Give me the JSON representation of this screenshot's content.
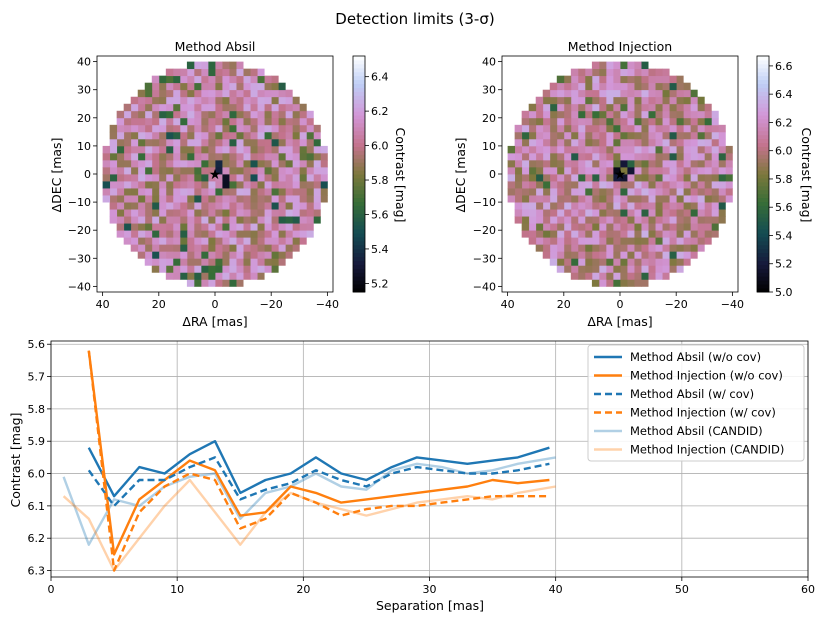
{
  "suptitle": "Detection limits (3-σ)",
  "chart_data": [
    {
      "type": "heatmap",
      "title": "Method Absil",
      "xlabel": "ΔRA [mas]",
      "ylabel": "ΔDEC [mas]",
      "xlim": [
        42,
        -42
      ],
      "ylim": [
        -42,
        42
      ],
      "xticks": [
        "40",
        "20",
        "0",
        "−20",
        "−40"
      ],
      "yticks": [
        "40",
        "30",
        "20",
        "10",
        "0",
        "−10",
        "−20",
        "−30",
        "−40"
      ],
      "colorbar": {
        "label": "Contrast [mag]",
        "min": 5.15,
        "max": 6.52,
        "ticks": [
          "5.2",
          "5.4",
          "5.6",
          "5.8",
          "6.0",
          "6.2",
          "6.4"
        ]
      },
      "grid": {
        "radius_mas": 40,
        "pixel_mas": 2.5,
        "typical": 6.05,
        "spread": 0.2,
        "darkest": 5.2
      },
      "marker": "star at origin"
    },
    {
      "type": "heatmap",
      "title": "Method Injection",
      "xlabel": "ΔRA [mas]",
      "ylabel": "ΔDEC [mas]",
      "xlim": [
        42,
        -42
      ],
      "ylim": [
        -42,
        42
      ],
      "xticks": [
        "40",
        "20",
        "0",
        "−20",
        "−40"
      ],
      "yticks": [
        "40",
        "30",
        "20",
        "10",
        "0",
        "−10",
        "−20",
        "−30",
        "−40"
      ],
      "colorbar": {
        "label": "Contrast [mag]",
        "min": 5.0,
        "max": 6.67,
        "ticks": [
          "5.0",
          "5.2",
          "5.4",
          "5.6",
          "5.8",
          "6.0",
          "6.2",
          "6.4",
          "6.6"
        ]
      },
      "grid": {
        "radius_mas": 40,
        "pixel_mas": 2.5,
        "typical": 6.1,
        "spread": 0.25,
        "darkest": 5.0
      },
      "marker": "star at origin"
    },
    {
      "type": "line",
      "xlabel": "Separation [mas]",
      "ylabel": "Contrast [mag]",
      "xlim": [
        0,
        60
      ],
      "ylim": [
        6.32,
        5.59
      ],
      "xticks": [
        "0",
        "10",
        "20",
        "30",
        "40",
        "50",
        "60"
      ],
      "yticks": [
        "5.6",
        "5.7",
        "5.8",
        "5.9",
        "6.0",
        "6.1",
        "6.2",
        "6.3"
      ],
      "grid": true,
      "legend_position": "top-right",
      "series": [
        {
          "name": "Method Absil (w/o cov)",
          "color": "#1f77b4",
          "dash": "solid",
          "alpha": 1,
          "x": [
            3,
            5,
            7,
            9,
            11,
            13,
            15,
            17,
            19,
            21,
            23,
            25,
            27,
            29,
            31,
            33,
            35,
            37,
            39.5
          ],
          "y": [
            5.92,
            6.07,
            5.98,
            6.0,
            5.94,
            5.9,
            6.06,
            6.02,
            6.0,
            5.95,
            6.0,
            6.02,
            5.98,
            5.95,
            5.96,
            5.97,
            5.96,
            5.95,
            5.92
          ]
        },
        {
          "name": "Method Injection (w/o cov)",
          "color": "#ff7f0e",
          "dash": "solid",
          "alpha": 1,
          "x": [
            3,
            5,
            7,
            9,
            11,
            13,
            15,
            17,
            19,
            21,
            23,
            25,
            27,
            29,
            31,
            33,
            35,
            37,
            39.5
          ],
          "y": [
            5.62,
            6.25,
            6.08,
            6.02,
            5.96,
            5.99,
            6.13,
            6.12,
            6.04,
            6.06,
            6.09,
            6.08,
            6.07,
            6.06,
            6.05,
            6.04,
            6.02,
            6.03,
            6.02
          ]
        },
        {
          "name": "Method Absil (w/ cov)",
          "color": "#1f77b4",
          "dash": "dashed",
          "alpha": 1,
          "x": [
            3,
            5,
            7,
            9,
            11,
            13,
            15,
            17,
            19,
            21,
            23,
            25,
            27,
            29,
            31,
            33,
            35,
            37,
            39.5
          ],
          "y": [
            5.99,
            6.1,
            6.02,
            6.02,
            5.98,
            5.95,
            6.08,
            6.05,
            6.03,
            5.99,
            6.02,
            6.04,
            6.0,
            5.98,
            5.99,
            6.0,
            6.0,
            5.99,
            5.97
          ]
        },
        {
          "name": "Method Injection (w/ cov)",
          "color": "#ff7f0e",
          "dash": "dashed",
          "alpha": 1,
          "x": [
            3,
            5,
            7,
            9,
            11,
            13,
            15,
            17,
            19,
            21,
            23,
            25,
            27,
            29,
            31,
            33,
            35,
            37,
            39.5
          ],
          "y": [
            5.62,
            6.3,
            6.12,
            6.04,
            6.0,
            6.02,
            6.17,
            6.14,
            6.06,
            6.09,
            6.13,
            6.11,
            6.1,
            6.1,
            6.09,
            6.08,
            6.07,
            6.07,
            6.07
          ]
        },
        {
          "name": "Method Absil (CANDID)",
          "color": "#1f77b4",
          "dash": "solid",
          "alpha": 0.35,
          "x": [
            1,
            3,
            5,
            7,
            9,
            11,
            13,
            15,
            17,
            19,
            21,
            23,
            25,
            27,
            29,
            31,
            33,
            35,
            37,
            40
          ],
          "y": [
            6.01,
            6.22,
            6.08,
            6.1,
            6.04,
            6.01,
            6.0,
            6.14,
            6.06,
            6.04,
            6.0,
            6.04,
            6.05,
            5.99,
            5.97,
            5.98,
            6.0,
            5.99,
            5.97,
            5.95
          ]
        },
        {
          "name": "Method Injection (CANDID)",
          "color": "#ff7f0e",
          "dash": "solid",
          "alpha": 0.35,
          "x": [
            1,
            3,
            5,
            7,
            9,
            11,
            13,
            15,
            17,
            19,
            21,
            23,
            25,
            27,
            29,
            31,
            33,
            35,
            37,
            40
          ],
          "y": [
            6.07,
            6.14,
            6.3,
            6.2,
            6.1,
            6.02,
            6.12,
            6.22,
            6.12,
            6.06,
            6.09,
            6.11,
            6.13,
            6.11,
            6.09,
            6.08,
            6.07,
            6.08,
            6.06,
            6.04
          ]
        }
      ]
    }
  ]
}
